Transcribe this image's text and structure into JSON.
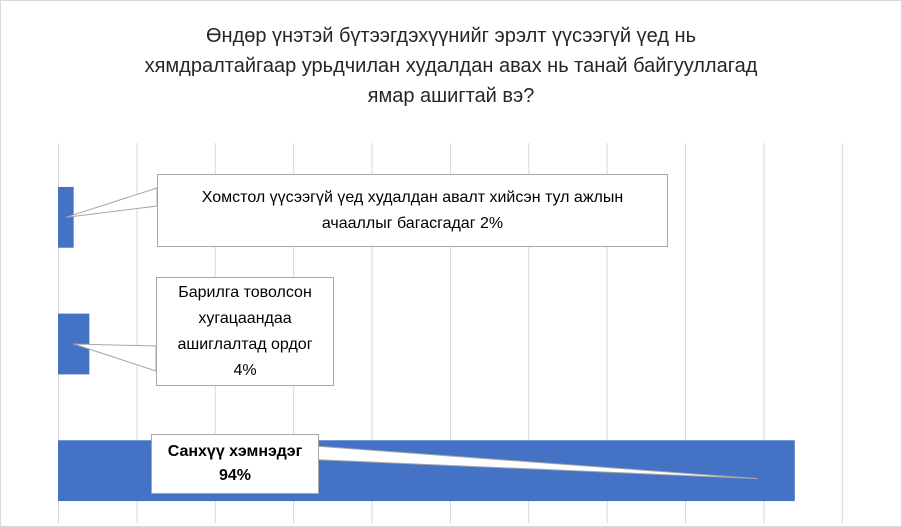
{
  "chart_data": {
    "type": "bar",
    "orientation": "horizontal",
    "title_lines": [
      "Өндөр үнэтэй бүтээгдэхүүнийг эрэлт үүсээгүй үед нь",
      "хямдралтайгаар урьдчилан худалдан авах нь танай байгууллагад",
      "ямар ашигтай вэ?"
    ],
    "categories": [
      "Хомстол үүсээгүй  үед худалдан авалт хийсэн тул ажлын ачааллыг багасгадаг",
      "Барилга товолсон хугацаандаа ашиглалтад ордог",
      "Санхүү хэмнэдэг"
    ],
    "values": [
      2,
      4,
      94
    ],
    "value_unit": "%",
    "xlim": [
      0,
      105
    ],
    "grid": true,
    "legend": "none",
    "bar_color": "#4472c4",
    "grid_color": "#d9d9d9",
    "label_lines": [
      [
        "Хомстол үүсээгүй  үед худалдан авалт хийсэн тул ажлын",
        "ачааллыг багасгадаг 2%"
      ],
      [
        "Барилга товолсон",
        "хугацаандаа",
        "ашиглалтад ордог",
        "4%"
      ],
      [
        "Санхүү хэмнэдэг",
        "94%"
      ]
    ]
  }
}
